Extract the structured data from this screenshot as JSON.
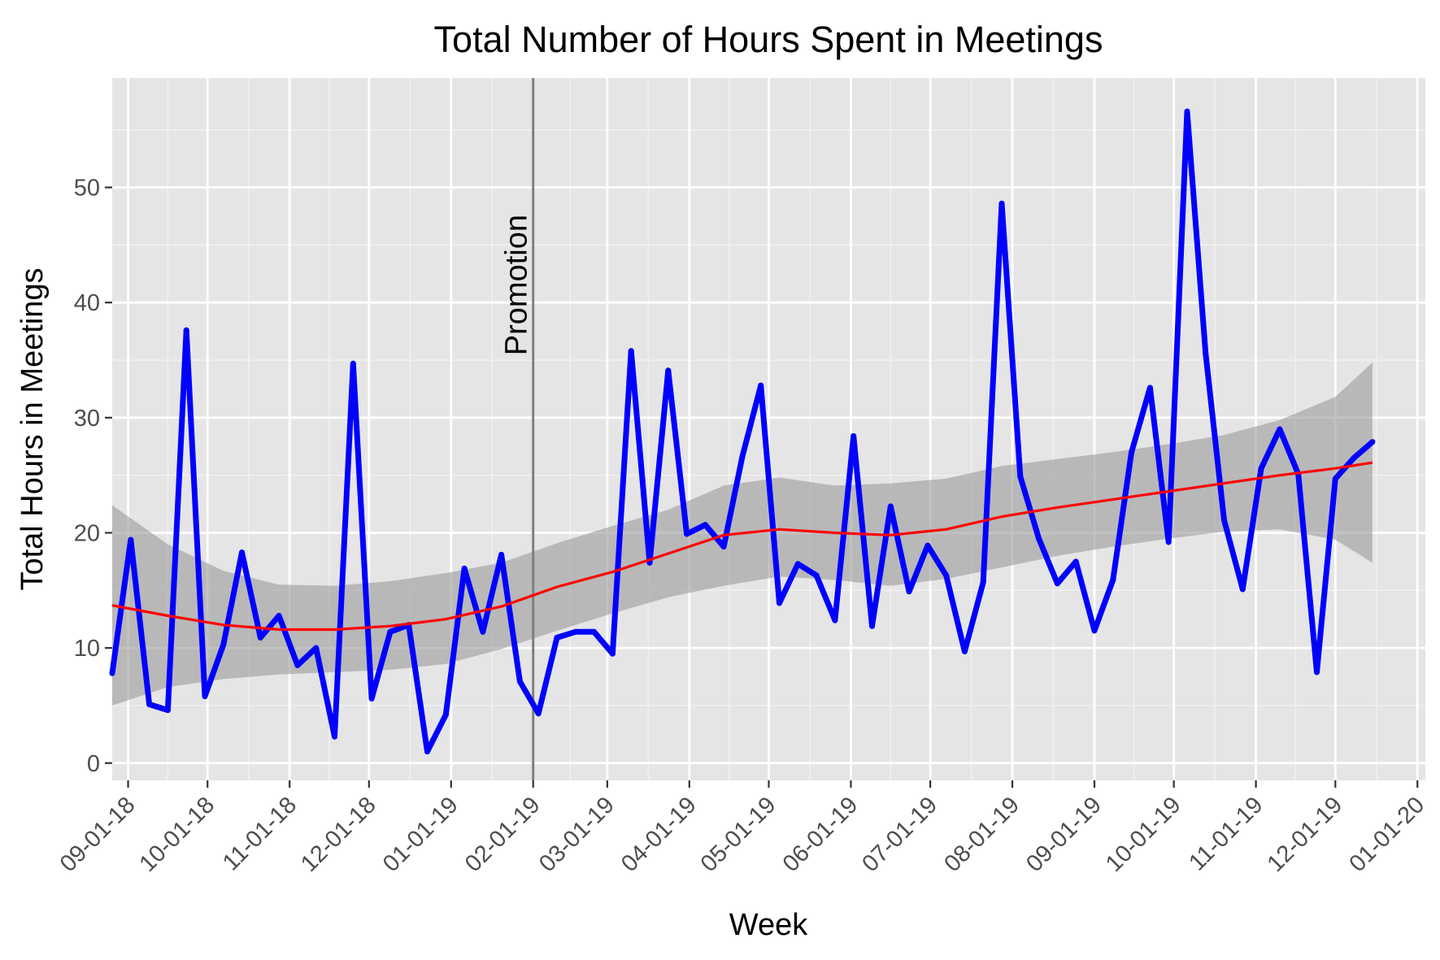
{
  "chart_data": {
    "type": "line",
    "title": "Total Number of Hours Spent in Meetings",
    "xlabel": "Week",
    "ylabel": "Total Hours in Meetings",
    "x_axis_type": "date",
    "xlim": [
      "2018-08-26",
      "2020-01-04"
    ],
    "ylim": [
      -1.5,
      59.5
    ],
    "y_ticks": [
      0,
      10,
      20,
      30,
      40,
      50
    ],
    "x_ticks": [
      {
        "date": "2018-09-01",
        "label": "09-01-18"
      },
      {
        "date": "2018-10-01",
        "label": "10-01-18"
      },
      {
        "date": "2018-11-01",
        "label": "11-01-18"
      },
      {
        "date": "2018-12-01",
        "label": "12-01-18"
      },
      {
        "date": "2019-01-01",
        "label": "01-01-19"
      },
      {
        "date": "2019-02-01",
        "label": "02-01-19"
      },
      {
        "date": "2019-03-01",
        "label": "03-01-19"
      },
      {
        "date": "2019-04-01",
        "label": "04-01-19"
      },
      {
        "date": "2019-05-01",
        "label": "05-01-19"
      },
      {
        "date": "2019-06-01",
        "label": "06-01-19"
      },
      {
        "date": "2019-07-01",
        "label": "07-01-19"
      },
      {
        "date": "2019-08-01",
        "label": "08-01-19"
      },
      {
        "date": "2019-09-01",
        "label": "09-01-19"
      },
      {
        "date": "2019-10-01",
        "label": "10-01-19"
      },
      {
        "date": "2019-11-01",
        "label": "11-01-19"
      },
      {
        "date": "2019-12-01",
        "label": "12-01-19"
      },
      {
        "date": "2020-01-01",
        "label": "01-01-20"
      }
    ],
    "grid": true,
    "vline": {
      "date": "2019-02-01",
      "label": "Promotion",
      "color": "#7f7f7f"
    },
    "series": [
      {
        "color": "#0000ff",
        "x": [
          "2018-08-26",
          "2018-09-02",
          "2018-09-09",
          "2018-09-16",
          "2018-09-23",
          "2018-09-30",
          "2018-10-07",
          "2018-10-14",
          "2018-10-21",
          "2018-10-28",
          "2018-11-04",
          "2018-11-11",
          "2018-11-18",
          "2018-11-25",
          "2018-12-02",
          "2018-12-09",
          "2018-12-16",
          "2018-12-23",
          "2018-12-30",
          "2019-01-06",
          "2019-01-13",
          "2019-01-20",
          "2019-01-27",
          "2019-02-03",
          "2019-02-10",
          "2019-02-17",
          "2019-02-24",
          "2019-03-03",
          "2019-03-10",
          "2019-03-17",
          "2019-03-24",
          "2019-03-31",
          "2019-04-07",
          "2019-04-14",
          "2019-04-21",
          "2019-04-28",
          "2019-05-05",
          "2019-05-12",
          "2019-05-19",
          "2019-05-26",
          "2019-06-02",
          "2019-06-09",
          "2019-06-16",
          "2019-06-23",
          "2019-06-30",
          "2019-07-07",
          "2019-07-14",
          "2019-07-21",
          "2019-07-28",
          "2019-08-04",
          "2019-08-11",
          "2019-08-18",
          "2019-08-25",
          "2019-09-01",
          "2019-09-08",
          "2019-09-15",
          "2019-09-22",
          "2019-09-29",
          "2019-10-06",
          "2019-10-13",
          "2019-10-20",
          "2019-10-27",
          "2019-11-03",
          "2019-11-10",
          "2019-11-17",
          "2019-11-24",
          "2019-12-01",
          "2019-12-08",
          "2019-12-15"
        ],
        "y": [
          7.8,
          19.4,
          5.1,
          4.6,
          37.6,
          5.8,
          10.3,
          18.3,
          10.9,
          12.8,
          8.5,
          10.0,
          2.3,
          34.7,
          5.6,
          11.4,
          12.0,
          1.0,
          4.2,
          16.9,
          11.4,
          18.1,
          7.1,
          4.3,
          10.9,
          11.4,
          11.4,
          9.5,
          35.8,
          17.4,
          34.1,
          19.9,
          20.7,
          18.8,
          26.6,
          32.8,
          13.9,
          17.3,
          16.3,
          12.4,
          28.4,
          11.9,
          22.3,
          14.9,
          18.9,
          16.3,
          9.7,
          15.7,
          48.6,
          24.9,
          19.5,
          15.6,
          17.5,
          11.5,
          15.9,
          27.0,
          32.6,
          19.2,
          56.6,
          35.6,
          21.1,
          15.1,
          25.6,
          29.0,
          25.1,
          7.9,
          24.7,
          26.5,
          27.9
        ]
      }
    ],
    "smooth": {
      "color": "#ff0000",
      "band_color": "#999999",
      "x": [
        "2018-08-26",
        "2018-09-16",
        "2018-10-07",
        "2018-10-28",
        "2018-11-18",
        "2018-12-09",
        "2018-12-30",
        "2019-01-20",
        "2019-02-10",
        "2019-03-03",
        "2019-03-24",
        "2019-04-14",
        "2019-05-05",
        "2019-05-26",
        "2019-06-16",
        "2019-07-07",
        "2019-07-28",
        "2019-08-18",
        "2019-09-08",
        "2019-09-29",
        "2019-10-20",
        "2019-11-10",
        "2019-12-01",
        "2019-12-15"
      ],
      "y": [
        13.7,
        12.8,
        12.0,
        11.6,
        11.6,
        11.9,
        12.5,
        13.6,
        15.3,
        16.6,
        18.2,
        19.8,
        20.3,
        20.0,
        19.8,
        20.3,
        21.4,
        22.2,
        22.9,
        23.6,
        24.3,
        25.0,
        25.6,
        26.1
      ],
      "lower": [
        5.0,
        6.6,
        7.3,
        7.7,
        7.9,
        8.1,
        8.6,
        9.9,
        11.5,
        13.0,
        14.4,
        15.4,
        16.2,
        15.9,
        15.4,
        16.0,
        17.0,
        18.0,
        18.8,
        19.5,
        20.1,
        20.3,
        19.4,
        17.4
      ],
      "upper": [
        22.4,
        19.0,
        16.7,
        15.5,
        15.4,
        15.8,
        16.5,
        17.4,
        19.1,
        20.6,
        22.0,
        24.1,
        24.8,
        24.1,
        24.3,
        24.7,
        25.8,
        26.4,
        27.0,
        27.7,
        28.5,
        29.8,
        31.8,
        34.8
      ]
    }
  }
}
